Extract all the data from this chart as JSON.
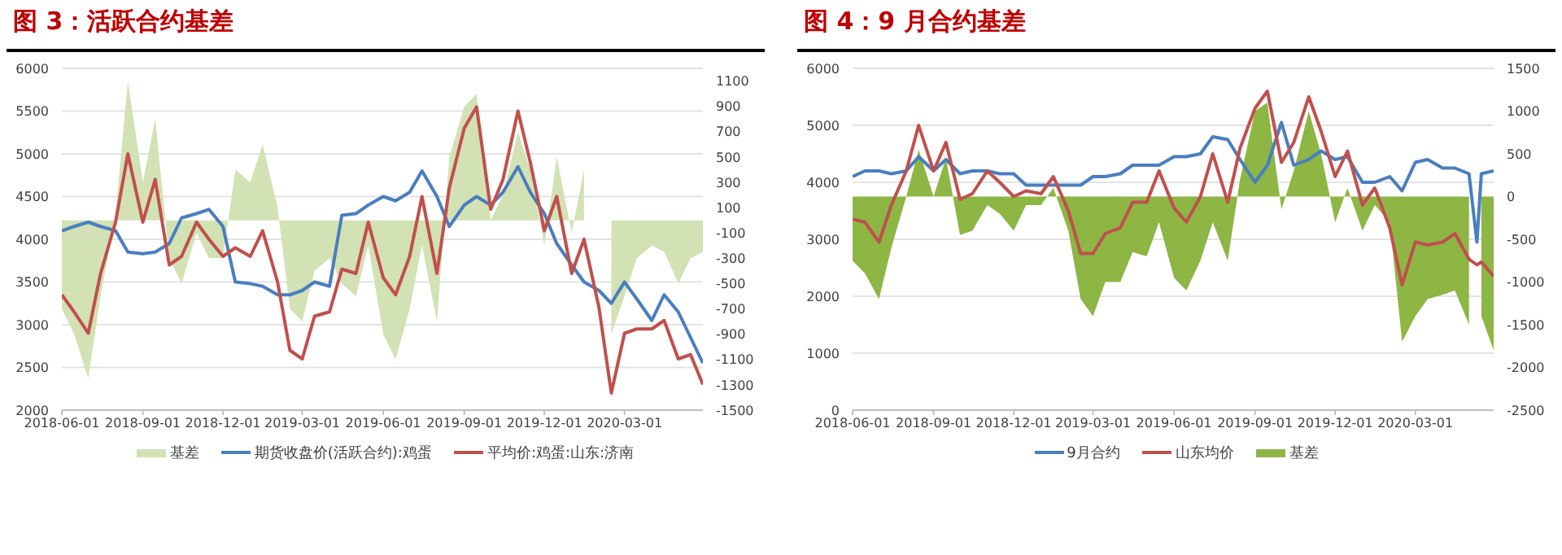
{
  "chart_data": [
    {
      "type": "line",
      "title": "图 3：活跃合约基差",
      "x": [
        "2018-06-01",
        "2018-06-15",
        "2018-07-01",
        "2018-07-15",
        "2018-08-01",
        "2018-08-15",
        "2018-09-01",
        "2018-09-15",
        "2018-10-01",
        "2018-10-15",
        "2018-11-01",
        "2018-11-15",
        "2018-12-01",
        "2018-12-15",
        "2019-01-01",
        "2019-01-15",
        "2019-02-01",
        "2019-02-15",
        "2019-03-01",
        "2019-03-15",
        "2019-04-01",
        "2019-04-15",
        "2019-05-01",
        "2019-05-15",
        "2019-06-01",
        "2019-06-15",
        "2019-07-01",
        "2019-07-15",
        "2019-08-01",
        "2019-08-15",
        "2019-09-01",
        "2019-09-15",
        "2019-10-01",
        "2019-10-15",
        "2019-11-01",
        "2019-11-15",
        "2019-12-01",
        "2019-12-15",
        "2020-01-01",
        "2020-01-15",
        "2020-02-01",
        "2020-02-15",
        "2020-03-01",
        "2020-03-15",
        "2020-04-01",
        "2020-04-15",
        "2020-05-01",
        "2020-05-15",
        "2020-05-29"
      ],
      "series": [
        {
          "name": "基差",
          "type": "area",
          "axis": "y2",
          "color": "#d3e2b5",
          "values": [
            -700,
            -900,
            -1250,
            -600,
            50,
            1100,
            300,
            800,
            -300,
            -500,
            -100,
            -300,
            -300,
            400,
            300,
            600,
            100,
            -700,
            -800,
            -400,
            -300,
            -500,
            -600,
            -200,
            -900,
            -1100,
            -700,
            -200,
            -800,
            500,
            900,
            1000,
            0,
            200,
            700,
            400,
            -200,
            500,
            -100,
            400,
            null,
            -900,
            -600,
            -300,
            -200,
            -250,
            -500,
            -300,
            -250
          ]
        },
        {
          "name": "期货收盘价(活跃合约):鸡蛋",
          "color": "#4a7ebf",
          "values": [
            4100,
            4150,
            4200,
            4150,
            4100,
            3850,
            3830,
            3850,
            3950,
            4250,
            4300,
            4350,
            4150,
            3500,
            3480,
            3450,
            3350,
            3350,
            3400,
            3500,
            3450,
            4280,
            4300,
            4400,
            4500,
            4450,
            4550,
            4800,
            4500,
            4150,
            4400,
            4500,
            4400,
            4550,
            4850,
            4550,
            4300,
            3950,
            3700,
            3500,
            3400,
            3250,
            3500,
            3300,
            3050,
            3350,
            3150,
            2850,
            2550
          ]
        },
        {
          "name": "平均价:鸡蛋:山东:济南",
          "color": "#c0504d",
          "values": [
            3350,
            3150,
            2900,
            3600,
            4200,
            5000,
            4200,
            4700,
            3700,
            3800,
            4200,
            4000,
            3800,
            3900,
            3800,
            4100,
            3500,
            2700,
            2600,
            3100,
            3150,
            3650,
            3600,
            4200,
            3550,
            3350,
            3800,
            4500,
            3600,
            4600,
            5300,
            5550,
            4350,
            4700,
            5500,
            4900,
            4100,
            4500,
            3600,
            4000,
            3200,
            2200,
            2900,
            2950,
            2950,
            3050,
            2600,
            2650,
            2300
          ]
        }
      ],
      "xlim": [
        "2018-06-01",
        "2020-05-29"
      ],
      "xticks": [
        "2018-06-01",
        "2018-09-01",
        "2018-12-01",
        "2019-03-01",
        "2019-06-01",
        "2019-09-01",
        "2019-12-01",
        "2020-03-01"
      ],
      "ylim": [
        2000,
        6000
      ],
      "yticks": [
        2000,
        2500,
        3000,
        3500,
        4000,
        4500,
        5000,
        5500,
        6000
      ],
      "y2lim": [
        -1500,
        1200
      ],
      "y2ticks": [
        -1500,
        -1300,
        -1100,
        -900,
        -700,
        -500,
        -300,
        -100,
        100,
        300,
        500,
        700,
        900,
        1100
      ],
      "grid": "y",
      "legend": "bottom"
    },
    {
      "type": "line",
      "title": "图 4：9 月合约基差",
      "x": [
        "2018-06-01",
        "2018-06-15",
        "2018-07-01",
        "2018-07-15",
        "2018-08-01",
        "2018-08-15",
        "2018-09-01",
        "2018-09-15",
        "2018-10-01",
        "2018-10-15",
        "2018-11-01",
        "2018-11-15",
        "2018-12-01",
        "2018-12-15",
        "2019-01-01",
        "2019-01-15",
        "2019-02-01",
        "2019-02-15",
        "2019-03-01",
        "2019-03-15",
        "2019-04-01",
        "2019-04-15",
        "2019-05-01",
        "2019-05-15",
        "2019-06-01",
        "2019-06-15",
        "2019-07-01",
        "2019-07-15",
        "2019-08-01",
        "2019-08-15",
        "2019-09-01",
        "2019-09-15",
        "2019-10-01",
        "2019-10-15",
        "2019-11-01",
        "2019-11-15",
        "2019-12-01",
        "2019-12-15",
        "2020-01-01",
        "2020-01-15",
        "2020-02-01",
        "2020-02-15",
        "2020-03-01",
        "2020-03-15",
        "2020-04-01",
        "2020-04-15",
        "2020-05-01",
        "2020-05-10",
        "2020-05-15",
        "2020-05-29"
      ],
      "series": [
        {
          "name": "9月合约",
          "color": "#4a7ebf",
          "values": [
            4100,
            4200,
            4200,
            4150,
            4200,
            4450,
            4200,
            4400,
            4150,
            4200,
            4200,
            4150,
            4150,
            3950,
            3950,
            3950,
            3950,
            3950,
            4100,
            4100,
            4150,
            4300,
            4300,
            4300,
            4450,
            4450,
            4500,
            4800,
            4750,
            4400,
            4000,
            4300,
            5050,
            4300,
            4400,
            4550,
            4400,
            4450,
            4000,
            4000,
            4100,
            3850,
            4350,
            4400,
            4250,
            4250,
            4150,
            2950,
            4150,
            4200
          ]
        },
        {
          "name": "山东均价",
          "color": "#c0504d",
          "values": [
            3350,
            3300,
            2950,
            3600,
            4200,
            5000,
            4200,
            4700,
            3700,
            3800,
            4200,
            4000,
            3750,
            3850,
            3800,
            4100,
            3500,
            2750,
            2750,
            3100,
            3200,
            3650,
            3650,
            4200,
            3550,
            3300,
            3750,
            4500,
            3650,
            4600,
            5300,
            5600,
            4350,
            4700,
            5500,
            4900,
            4100,
            4550,
            3600,
            3900,
            3200,
            2200,
            2950,
            2900,
            2950,
            3100,
            2650,
            2550,
            2600,
            2350
          ]
        },
        {
          "name": "基差",
          "type": "area",
          "axis": "y2",
          "color": "#8db645",
          "values": [
            -750,
            -900,
            -1200,
            -600,
            0,
            550,
            0,
            450,
            -450,
            -400,
            -100,
            -200,
            -400,
            -100,
            -100,
            100,
            -400,
            -1200,
            -1400,
            -1000,
            -1000,
            -650,
            -700,
            -300,
            -950,
            -1100,
            -750,
            -300,
            -750,
            200,
            1000,
            1100,
            -150,
            300,
            1000,
            500,
            -300,
            100,
            -400,
            -100,
            -300,
            -1700,
            -1400,
            -1200,
            -1150,
            -1100,
            -1500,
            null,
            -1400,
            -1800
          ]
        }
      ],
      "xlim": [
        "2018-06-01",
        "2020-05-29"
      ],
      "xticks": [
        "2018-06-01",
        "2018-09-01",
        "2018-12-01",
        "2019-03-01",
        "2019-06-01",
        "2019-09-01",
        "2019-12-01",
        "2020-03-01"
      ],
      "ylim": [
        0,
        6000
      ],
      "yticks": [
        0,
        1000,
        2000,
        3000,
        4000,
        5000,
        6000
      ],
      "y2lim": [
        -2500,
        1500
      ],
      "y2ticks": [
        -2500,
        -2000,
        -1500,
        -1000,
        -500,
        0,
        500,
        1000,
        1500
      ],
      "grid": "y",
      "legend": "bottom"
    }
  ]
}
